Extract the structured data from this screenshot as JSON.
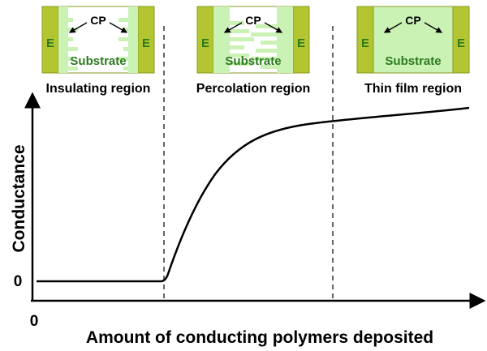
{
  "panels": [
    {
      "label": "Insulating region",
      "electrode_left": "E",
      "electrode_right": "E",
      "cp": "CP",
      "substrate": "Substrate"
    },
    {
      "label": "Percolation region",
      "electrode_left": "E",
      "electrode_right": "E",
      "cp": "CP",
      "substrate": "Substrate"
    },
    {
      "label": "Thin film region",
      "electrode_left": "E",
      "electrode_right": "E",
      "cp": "CP",
      "substrate": "Substrate"
    }
  ],
  "y_axis": {
    "label": "Conductance",
    "origin": "0"
  },
  "x_axis": {
    "label": "Amount of conducting polymers deposited",
    "origin": "0"
  }
}
